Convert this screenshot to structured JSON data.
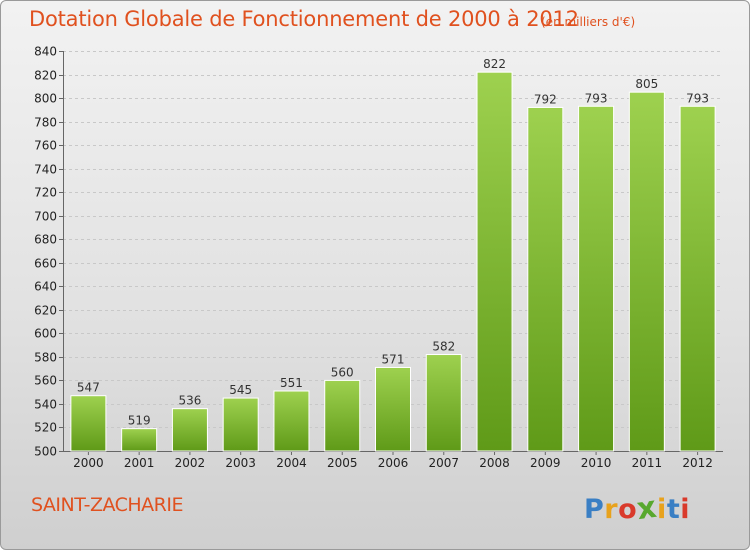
{
  "header": {
    "title": "Dotation Globale de Fonctionnement de 2000 à 2012",
    "unit": "(en milliers d'€)"
  },
  "footer": {
    "commune": "SAINT-ZACHARIE",
    "logo": "Proxiti"
  },
  "colors": {
    "title": "#e0511f",
    "bar_top": "#9ed14f",
    "bar_bottom": "#5f9a18"
  },
  "chart_data": {
    "type": "bar",
    "title": "Dotation Globale de Fonctionnement de 2000 à 2012",
    "subtitle": "(en milliers d'€)",
    "categories": [
      "2000",
      "2001",
      "2002",
      "2003",
      "2004",
      "2005",
      "2006",
      "2007",
      "2008",
      "2009",
      "2010",
      "2011",
      "2012"
    ],
    "values": [
      547,
      519,
      536,
      545,
      551,
      560,
      571,
      582,
      822,
      792,
      793,
      805,
      793
    ],
    "ylim": [
      500,
      840
    ],
    "ytick_step": 20,
    "grid": true,
    "legend": "none"
  }
}
